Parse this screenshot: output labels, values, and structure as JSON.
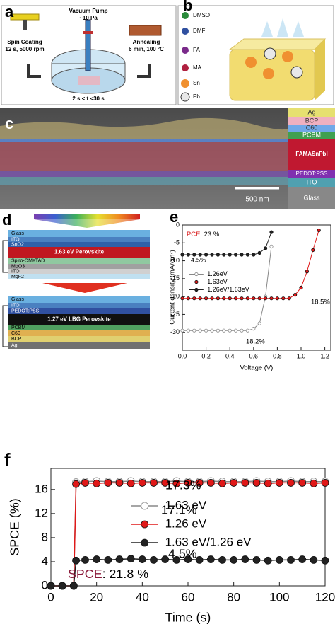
{
  "figure": {
    "panel_a": {
      "letter": "a",
      "pump": "Vacuum Pump",
      "pressure": "~10 Pa",
      "spin": "Spin Coating",
      "spin_cond": "12 s, 5000 rpm",
      "anneal": "Annealing",
      "anneal_cond": "6 min, 100 °C",
      "time": "2 s < t <30 s"
    },
    "panel_b": {
      "letter": "b",
      "legend": [
        "DMSO",
        "DMF",
        "FA",
        "MA",
        "Sn",
        "Pb"
      ]
    },
    "panel_c": {
      "letter": "c",
      "layers": [
        "Ag",
        "BCP",
        "C60",
        "PCBM",
        "FAMASnPbI",
        "PEDOT:PSS",
        "ITO",
        "Glass"
      ],
      "scale": "500 nm"
    },
    "panel_d": {
      "letter": "d",
      "top_stack": [
        "Glass",
        "ITO",
        "SnO2",
        "1.63 eV Perovskite",
        "Spiro-OMeTAD",
        "MoO3",
        "ITO",
        "MgF2"
      ],
      "bottom_stack": [
        "Glass",
        "ITO",
        "PEDOT:PSS",
        "1.27 eV LBG Perovskite",
        "PCBM",
        "C60",
        "BCP",
        "Ag"
      ]
    }
  },
  "chart_data": [
    {
      "type": "line",
      "letter": "e",
      "x_label": "Voltage (V)",
      "y_label": "Current density (mA/cm²)",
      "x": [
        0,
        0.05,
        0.1,
        0.15,
        0.2,
        0.25,
        0.3,
        0.35,
        0.4,
        0.45,
        0.5,
        0.55,
        0.6,
        0.65,
        0.7,
        0.75,
        0.8,
        0.85,
        0.9,
        0.95,
        1.0,
        1.05,
        1.1,
        1.15,
        1.2
      ],
      "xlim": [
        0,
        1.25
      ],
      "ylim": [
        -35,
        0
      ],
      "xticks": [
        {
          "value": 0,
          "label": "0.0"
        },
        0.2,
        0.4,
        0.6,
        0.8,
        {
          "value": 1,
          "label": "1.0"
        },
        1.2
      ],
      "yticks": [
        -30,
        -25,
        -20,
        -15,
        -10,
        -5,
        0
      ],
      "legend": "center-left",
      "highlight": {
        "label": "PCE",
        "text": ": 23 %",
        "color": "#d81818"
      },
      "annotations": [
        "4.5%",
        "18.5%",
        "18.2%"
      ],
      "series": [
        {
          "name": "1.26eV",
          "color": "#888888",
          "marker": "open",
          "values": [
            -29.5,
            -29.5,
            -29.5,
            -29.5,
            -29.5,
            -29.5,
            -29.5,
            -29.5,
            -29.5,
            -29.5,
            -29.5,
            -29.5,
            -29,
            -27.5,
            -20,
            -6,
            null,
            null,
            null,
            null,
            null,
            null,
            null,
            null,
            null
          ]
        },
        {
          "name": "1.63eV",
          "color": "#e01818",
          "marker": "filled",
          "values": [
            -20.5,
            -20.5,
            -20.5,
            -20.5,
            -20.5,
            -20.5,
            -20.5,
            -20.5,
            -20.5,
            -20.5,
            -20.5,
            -20.5,
            -20.5,
            -20.5,
            -20.5,
            -20.5,
            -20.5,
            -20.5,
            -20.5,
            -19.5,
            -17.5,
            -13,
            -7,
            -1.5,
            null
          ]
        },
        {
          "name": "1.26eV/1.63eV",
          "color": "#222222",
          "marker": "filled",
          "values": [
            -8.3,
            -8.3,
            -8.3,
            -8.3,
            -8.3,
            -8.3,
            -8.3,
            -8.3,
            -8.3,
            -8.3,
            -8.3,
            -8.3,
            -8.3,
            -7.8,
            -6.5,
            -2,
            null,
            null,
            null,
            null,
            null,
            null,
            null,
            null,
            null
          ]
        }
      ]
    },
    {
      "type": "line",
      "letter": "f",
      "x_label": "Time (s)",
      "y_label": "SPCE (%)",
      "x": [
        0,
        5,
        10,
        11,
        15,
        20,
        25,
        30,
        35,
        40,
        45,
        50,
        55,
        60,
        65,
        70,
        75,
        80,
        85,
        90,
        95,
        100,
        105,
        110,
        115,
        120
      ],
      "xlim": [
        0,
        120
      ],
      "ylim": [
        0,
        19.5
      ],
      "xticks": [
        0,
        20,
        40,
        60,
        80,
        100,
        120
      ],
      "yticks": [
        0,
        4,
        8,
        12,
        16
      ],
      "legend": "center",
      "highlight": {
        "label": "SPCE",
        "text": ": 21.8 %",
        "color": "#8b1a3a"
      },
      "annotations": [
        "17.3%",
        "17.1%",
        "4.5%"
      ],
      "series": [
        {
          "name": "1.63 eV",
          "color": "#888888",
          "marker": "open",
          "values": [
            0,
            0,
            0,
            17.2,
            17.3,
            17.4,
            17.3,
            17.3,
            17.4,
            17.3,
            17.3,
            17.3,
            17.4,
            17.3,
            17.3,
            17.4,
            17.3,
            17.3,
            17.3,
            17.4,
            17.3,
            17.3,
            17.4,
            17.3,
            17.3,
            17.3
          ]
        },
        {
          "name": "1.26 eV",
          "color": "#e01818",
          "marker": "filled",
          "values": [
            0,
            0,
            0,
            16.9,
            17.1,
            17.0,
            17.1,
            17.1,
            17.0,
            17.1,
            17.1,
            17.1,
            17.0,
            17.1,
            17.1,
            17.1,
            17.0,
            17.1,
            17.1,
            17.1,
            17.0,
            17.1,
            17.1,
            17.1,
            17.0,
            17.1
          ]
        },
        {
          "name": "1.63 eV/1.26 eV",
          "color": "#222222",
          "marker": "filled",
          "values": [
            0,
            0,
            0,
            4.2,
            4.3,
            4.4,
            4.3,
            4.4,
            4.5,
            4.4,
            4.3,
            4.4,
            4.3,
            4.4,
            4.3,
            4.4,
            4.3,
            4.3,
            4.4,
            4.3,
            4.2,
            4.3,
            4.3,
            4.4,
            4.3,
            4.2
          ]
        }
      ]
    }
  ]
}
